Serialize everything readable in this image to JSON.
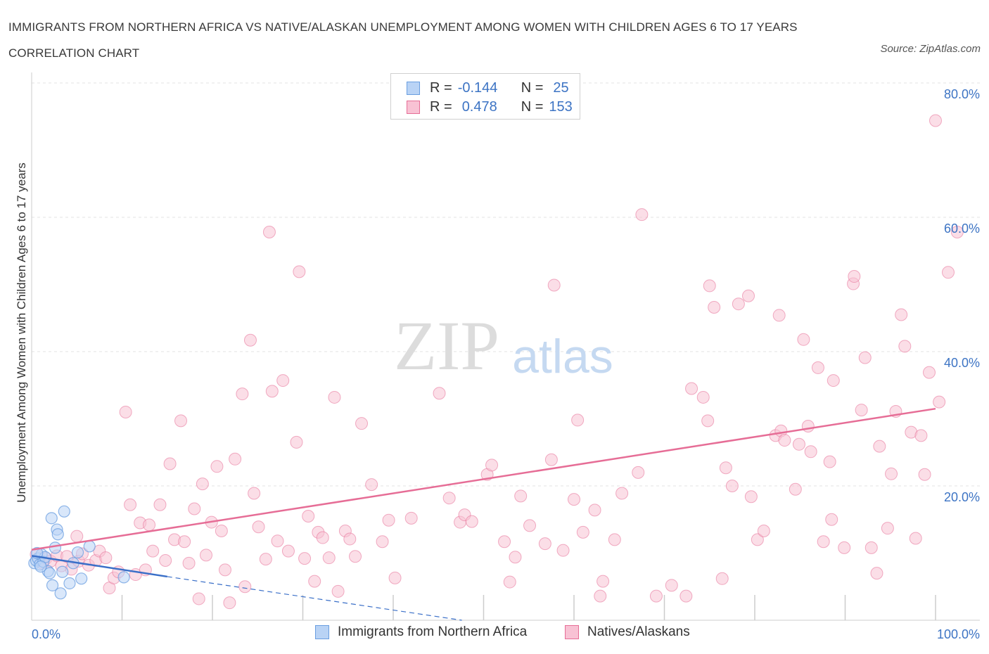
{
  "title": "IMMIGRANTS FROM NORTHERN AFRICA VS NATIVE/ALASKAN UNEMPLOYMENT AMONG WOMEN WITH CHILDREN AGES 6 TO 17 YEARS CORRELATION CHART",
  "source": "Source: ZipAtlas.com",
  "watermark": {
    "zip": "ZIP",
    "atlas": "atlas"
  },
  "colors": {
    "blue": "#6a9ee0",
    "blue_fill": "#b9d3f5",
    "blue_line": "#3a6fc8",
    "pink": "#e66d96",
    "pink_fill": "#f8c2d4",
    "axis_text": "#3d74c4"
  },
  "legend": {
    "rows": [
      {
        "r_label": "R =",
        "r_value": "-0.144",
        "n_label": "N =",
        "n_value": "25"
      },
      {
        "r_label": "R =",
        "r_value": "0.478",
        "n_label": "N =",
        "n_value": "153"
      }
    ]
  },
  "bottom_legend": {
    "series1": "Immigrants from Northern Africa",
    "series2": "Natives/Alaskans"
  },
  "chart_data": {
    "type": "scatter",
    "title": "IMMIGRANTS FROM NORTHERN AFRICA VS NATIVE/ALASKAN UNEMPLOYMENT AMONG WOMEN WITH CHILDREN AGES 6 TO 17 YEARS CORRELATION CHART",
    "xlabel": "",
    "ylabel": "Unemployment Among Women with Children Ages 6 to 17 years",
    "xlim": [
      0,
      100
    ],
    "ylim": [
      0,
      80
    ],
    "x_tick_labels": [
      "0.0%",
      "100.0%"
    ],
    "y_ticks": [
      20,
      40,
      60,
      80
    ],
    "y_tick_labels": [
      "20.0%",
      "40.0%",
      "60.0%",
      "80.0%"
    ],
    "series": [
      {
        "name": "Immigrants from Northern Africa",
        "R": -0.144,
        "N": 25,
        "trend": {
          "x0": 0,
          "y0": 9.6,
          "x1": 15,
          "y1": 6.5,
          "dash_to_x": 47.6,
          "dash_to_y": 0
        },
        "points": [
          [
            0.3,
            8.5
          ],
          [
            0.5,
            8.9
          ],
          [
            0.7,
            9.2
          ],
          [
            0.9,
            8.3
          ],
          [
            1.1,
            9.8
          ],
          [
            1.3,
            8.7
          ],
          [
            1.5,
            9.4
          ],
          [
            1.8,
            7.3
          ],
          [
            2.0,
            7.0
          ],
          [
            2.2,
            15.2
          ],
          [
            2.3,
            5.2
          ],
          [
            2.6,
            10.8
          ],
          [
            2.8,
            13.5
          ],
          [
            2.9,
            12.8
          ],
          [
            3.2,
            4.0
          ],
          [
            3.4,
            7.2
          ],
          [
            3.6,
            16.2
          ],
          [
            4.2,
            5.5
          ],
          [
            4.6,
            8.5
          ],
          [
            5.1,
            10.1
          ],
          [
            5.5,
            6.2
          ],
          [
            6.4,
            11.0
          ],
          [
            10.2,
            6.4
          ],
          [
            0.6,
            10.0
          ],
          [
            1.0,
            8.0
          ]
        ]
      },
      {
        "name": "Natives/Alaskans",
        "R": 0.478,
        "N": 153,
        "trend": {
          "x0": 0,
          "y0": 10.5,
          "x1": 100,
          "y1": 31.5
        },
        "points": [
          [
            0.5,
            9.8
          ],
          [
            1.2,
            8.5
          ],
          [
            1.6,
            9.2
          ],
          [
            2.1,
            8.8
          ],
          [
            2.8,
            9.6
          ],
          [
            3.3,
            8.1
          ],
          [
            3.9,
            9.5
          ],
          [
            4.4,
            7.6
          ],
          [
            5.0,
            12.5
          ],
          [
            5.2,
            8.8
          ],
          [
            5.6,
            9.9
          ],
          [
            6.3,
            8.2
          ],
          [
            7.1,
            8.9
          ],
          [
            7.5,
            10.3
          ],
          [
            8.2,
            9.3
          ],
          [
            8.6,
            4.8
          ],
          [
            9.1,
            6.3
          ],
          [
            9.6,
            7.2
          ],
          [
            10.4,
            31.0
          ],
          [
            10.9,
            17.2
          ],
          [
            11.5,
            6.8
          ],
          [
            12.0,
            14.5
          ],
          [
            12.6,
            7.5
          ],
          [
            13.0,
            14.2
          ],
          [
            13.4,
            10.3
          ],
          [
            14.2,
            17.2
          ],
          [
            14.8,
            8.9
          ],
          [
            15.3,
            23.3
          ],
          [
            15.8,
            12.0
          ],
          [
            16.5,
            29.7
          ],
          [
            16.9,
            11.7
          ],
          [
            17.4,
            8.5
          ],
          [
            18.0,
            16.6
          ],
          [
            18.5,
            3.2
          ],
          [
            18.9,
            20.3
          ],
          [
            19.3,
            9.7
          ],
          [
            19.9,
            14.6
          ],
          [
            20.5,
            22.9
          ],
          [
            21.0,
            13.3
          ],
          [
            21.4,
            7.5
          ],
          [
            21.9,
            2.6
          ],
          [
            22.5,
            24.0
          ],
          [
            23.3,
            33.7
          ],
          [
            23.6,
            5.0
          ],
          [
            24.2,
            41.7
          ],
          [
            24.6,
            18.9
          ],
          [
            25.1,
            13.9
          ],
          [
            25.9,
            9.1
          ],
          [
            26.3,
            57.8
          ],
          [
            26.6,
            34.1
          ],
          [
            27.2,
            11.8
          ],
          [
            27.8,
            35.7
          ],
          [
            28.4,
            10.3
          ],
          [
            29.3,
            26.5
          ],
          [
            29.6,
            51.9
          ],
          [
            30.2,
            9.2
          ],
          [
            30.6,
            15.5
          ],
          [
            31.3,
            5.8
          ],
          [
            31.7,
            13.1
          ],
          [
            32.2,
            12.3
          ],
          [
            32.9,
            9.3
          ],
          [
            33.5,
            33.2
          ],
          [
            33.9,
            4.3
          ],
          [
            34.7,
            13.3
          ],
          [
            35.2,
            12.1
          ],
          [
            35.8,
            9.5
          ],
          [
            36.5,
            29.3
          ],
          [
            37.6,
            20.2
          ],
          [
            38.8,
            11.7
          ],
          [
            39.5,
            14.9
          ],
          [
            40.2,
            6.3
          ],
          [
            42.0,
            15.2
          ],
          [
            45.1,
            33.8
          ],
          [
            46.2,
            18.2
          ],
          [
            47.4,
            14.6
          ],
          [
            47.9,
            15.7
          ],
          [
            48.7,
            14.7
          ],
          [
            50.4,
            21.7
          ],
          [
            50.9,
            23.1
          ],
          [
            52.3,
            11.7
          ],
          [
            52.9,
            5.7
          ],
          [
            53.5,
            9.4
          ],
          [
            54.1,
            18.5
          ],
          [
            55.1,
            14.1
          ],
          [
            56.8,
            11.4
          ],
          [
            57.5,
            23.9
          ],
          [
            57.8,
            49.9
          ],
          [
            58.8,
            10.4
          ],
          [
            60.0,
            18.0
          ],
          [
            60.4,
            29.8
          ],
          [
            61.0,
            13.1
          ],
          [
            62.3,
            16.4
          ],
          [
            62.9,
            3.6
          ],
          [
            63.2,
            5.8
          ],
          [
            64.5,
            12.0
          ],
          [
            65.3,
            18.9
          ],
          [
            67.1,
            22.0
          ],
          [
            67.5,
            60.4
          ],
          [
            69.1,
            3.6
          ],
          [
            70.8,
            5.2
          ],
          [
            72.4,
            3.6
          ],
          [
            73.0,
            34.5
          ],
          [
            74.3,
            33.2
          ],
          [
            74.8,
            29.7
          ],
          [
            75.0,
            49.8
          ],
          [
            75.5,
            46.6
          ],
          [
            76.4,
            6.2
          ],
          [
            76.8,
            22.7
          ],
          [
            77.5,
            20.0
          ],
          [
            78.2,
            47.1
          ],
          [
            79.3,
            48.3
          ],
          [
            79.6,
            18.4
          ],
          [
            80.3,
            12.0
          ],
          [
            81.0,
            13.3
          ],
          [
            82.3,
            27.5
          ],
          [
            82.7,
            45.4
          ],
          [
            82.9,
            28.2
          ],
          [
            83.3,
            26.8
          ],
          [
            84.5,
            19.5
          ],
          [
            84.9,
            26.2
          ],
          [
            85.4,
            41.8
          ],
          [
            85.9,
            28.9
          ],
          [
            86.2,
            25.1
          ],
          [
            87.0,
            37.6
          ],
          [
            87.6,
            11.7
          ],
          [
            88.3,
            23.6
          ],
          [
            88.5,
            15.0
          ],
          [
            88.7,
            35.7
          ],
          [
            89.9,
            10.8
          ],
          [
            90.9,
            50.1
          ],
          [
            91.0,
            51.2
          ],
          [
            91.8,
            31.3
          ],
          [
            92.2,
            39.1
          ],
          [
            92.9,
            10.8
          ],
          [
            93.5,
            7.0
          ],
          [
            93.8,
            25.9
          ],
          [
            94.7,
            13.7
          ],
          [
            95.1,
            21.8
          ],
          [
            95.6,
            31.1
          ],
          [
            96.2,
            45.5
          ],
          [
            96.6,
            40.8
          ],
          [
            97.3,
            28.0
          ],
          [
            97.8,
            12.2
          ],
          [
            98.4,
            27.5
          ],
          [
            98.8,
            21.7
          ],
          [
            99.3,
            36.9
          ],
          [
            100.0,
            74.4
          ],
          [
            100.4,
            32.5
          ],
          [
            101.4,
            51.8
          ],
          [
            102.4,
            57.8
          ]
        ]
      }
    ]
  }
}
